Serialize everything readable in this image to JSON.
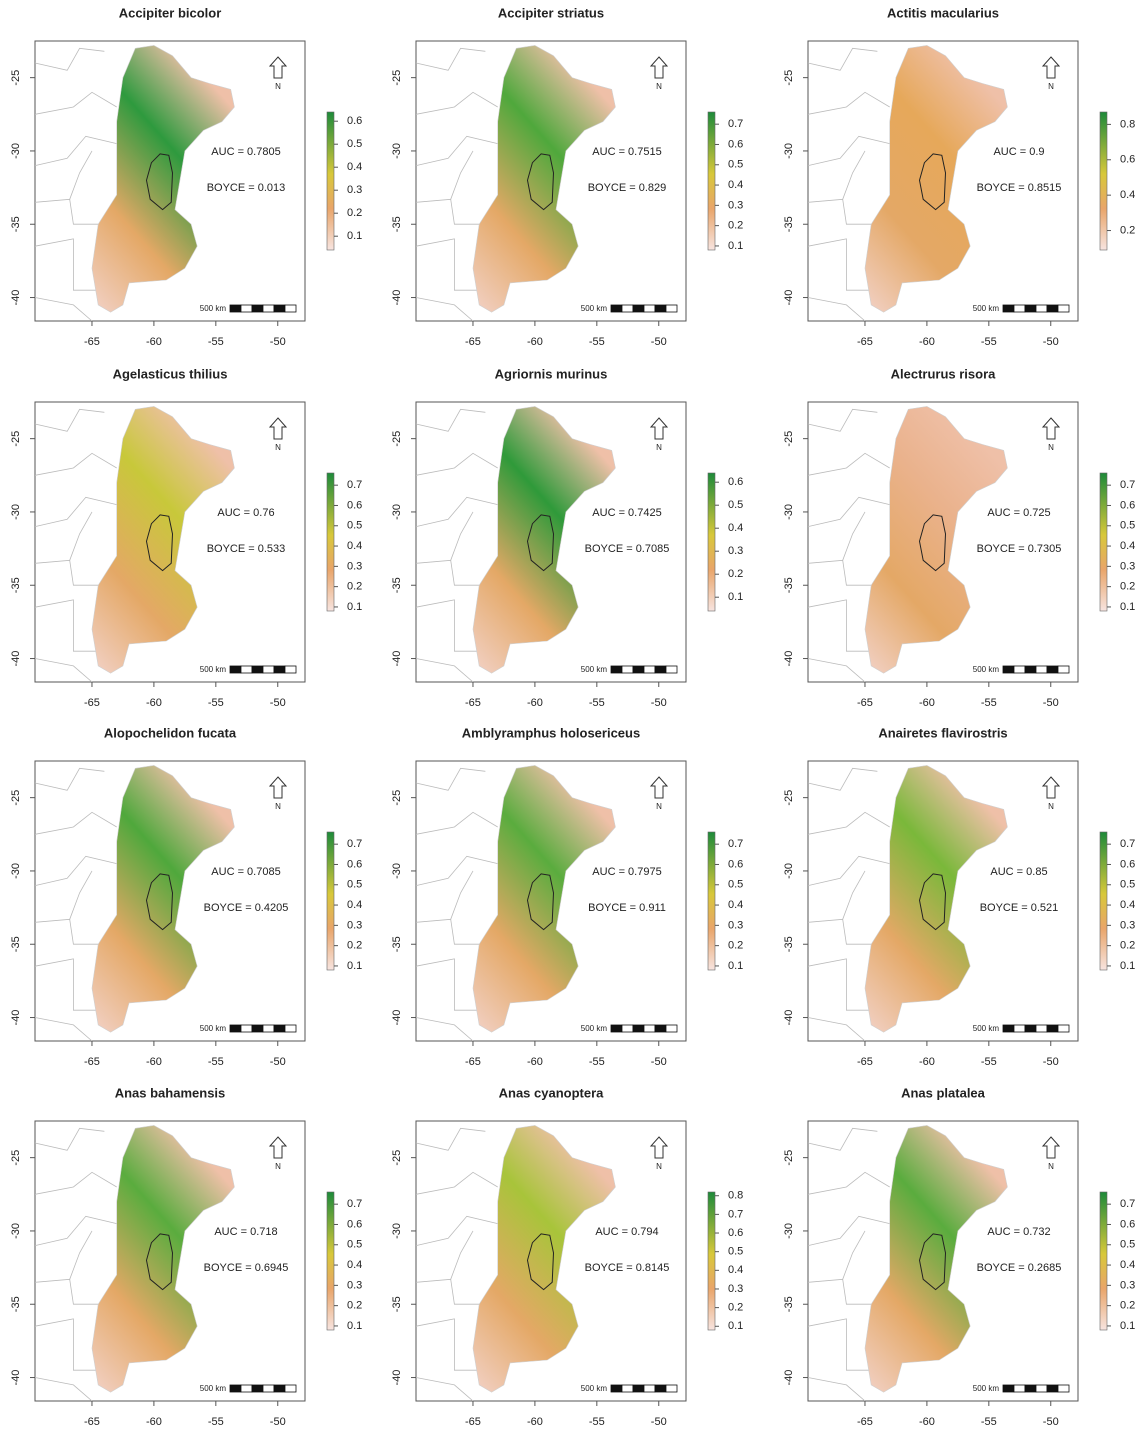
{
  "panels": [
    {
      "title": "Accipiter bicolor",
      "auc": "AUC = 0.7805",
      "boyce": "BOYCE = 0.013",
      "legend_ticks": [
        0.1,
        0.2,
        0.3,
        0.4,
        0.5,
        0.6
      ],
      "legend_range": [
        0.04,
        0.64
      ],
      "map_color": "#2e9a3e"
    },
    {
      "title": "Accipiter striatus",
      "auc": "AUC = 0.7515",
      "boyce": "BOYCE = 0.829",
      "legend_ticks": [
        0.1,
        0.2,
        0.3,
        0.4,
        0.5,
        0.6,
        0.7
      ],
      "legend_range": [
        0.08,
        0.76
      ],
      "map_color": "#4fa83c"
    },
    {
      "title": "Actitis macularius",
      "auc": "AUC = 0.9",
      "boyce": "BOYCE = 0.8515",
      "legend_ticks": [
        0.2,
        0.4,
        0.6,
        0.8
      ],
      "legend_range": [
        0.09,
        0.87
      ],
      "map_color": "#e6a85a"
    },
    {
      "title": "Agelasticus thilius",
      "auc": "AUC = 0.76",
      "boyce": "BOYCE = 0.533",
      "legend_ticks": [
        0.1,
        0.2,
        0.3,
        0.4,
        0.5,
        0.6,
        0.7
      ],
      "legend_range": [
        0.08,
        0.76
      ],
      "map_color": "#c8c83a"
    },
    {
      "title": "Agriornis murinus",
      "auc": "AUC = 0.7425",
      "boyce": "BOYCE = 0.7085",
      "legend_ticks": [
        0.1,
        0.2,
        0.3,
        0.4,
        0.5,
        0.6
      ],
      "legend_range": [
        0.04,
        0.64
      ],
      "map_color": "#2f9a3a"
    },
    {
      "title": "Alectrurus risora",
      "auc": "AUC = 0.725",
      "boyce": "BOYCE = 0.7305",
      "legend_ticks": [
        0.1,
        0.2,
        0.3,
        0.4,
        0.5,
        0.6,
        0.7
      ],
      "legend_range": [
        0.08,
        0.76
      ],
      "map_color": "#eab28c"
    },
    {
      "title": "Alopochelidon fucata",
      "auc": "AUC = 0.7085",
      "boyce": "BOYCE = 0.4205",
      "legend_ticks": [
        0.1,
        0.2,
        0.3,
        0.4,
        0.5,
        0.6,
        0.7
      ],
      "legend_range": [
        0.08,
        0.76
      ],
      "map_color": "#4fa83c"
    },
    {
      "title": "Amblyramphus holosericeus",
      "auc": "AUC = 0.7975",
      "boyce": "BOYCE = 0.911",
      "legend_ticks": [
        0.1,
        0.2,
        0.3,
        0.4,
        0.5,
        0.6,
        0.7
      ],
      "legend_range": [
        0.08,
        0.76
      ],
      "map_color": "#5aac3e"
    },
    {
      "title": "Anairetes flavirostris",
      "auc": "AUC = 0.85",
      "boyce": "BOYCE = 0.521",
      "legend_ticks": [
        0.1,
        0.2,
        0.3,
        0.4,
        0.5,
        0.6,
        0.7
      ],
      "legend_range": [
        0.08,
        0.76
      ],
      "map_color": "#7ab83a"
    },
    {
      "title": "Anas bahamensis",
      "auc": "AUC = 0.718",
      "boyce": "BOYCE = 0.6945",
      "legend_ticks": [
        0.1,
        0.2,
        0.3,
        0.4,
        0.5,
        0.6,
        0.7
      ],
      "legend_range": [
        0.08,
        0.76
      ],
      "map_color": "#5aac3e"
    },
    {
      "title": "Anas cyanoptera",
      "auc": "AUC = 0.794",
      "boyce": "BOYCE = 0.8145",
      "legend_ticks": [
        0.1,
        0.2,
        0.3,
        0.4,
        0.5,
        0.6,
        0.7,
        0.8
      ],
      "legend_range": [
        0.08,
        0.82
      ],
      "map_color": "#a8c43a"
    },
    {
      "title": "Anas platalea",
      "auc": "AUC = 0.732",
      "boyce": "BOYCE = 0.2685",
      "legend_ticks": [
        0.1,
        0.2,
        0.3,
        0.4,
        0.5,
        0.6,
        0.7
      ],
      "legend_range": [
        0.08,
        0.76
      ],
      "map_color": "#5aac3e"
    }
  ],
  "x_ticks": [
    -65,
    -60,
    -55,
    -50
  ],
  "xlim": [
    -69.6,
    -47.8
  ],
  "y_ticks": [
    -25,
    -30,
    -35,
    -40
  ],
  "ylim": [
    -41.6,
    -22.5
  ],
  "scale_label": "500 km",
  "north_label": "N"
}
